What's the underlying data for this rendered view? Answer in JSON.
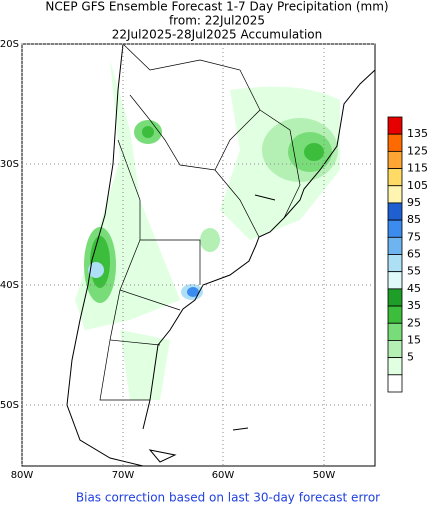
{
  "header": {
    "title": "NCEP GFS Ensemble Forecast 1-7 Day Precipitation (mm)",
    "from": "from: 22Jul2025",
    "period": "22Jul2025-28Jul2025 Accumulation"
  },
  "map": {
    "lat_labels": [
      "20S",
      "30S",
      "40S",
      "50S"
    ],
    "lon_labels": [
      "80W",
      "70W",
      "60W",
      "50W"
    ]
  },
  "colorbar": {
    "colors": [
      "#e60000",
      "#ff6a00",
      "#ffa533",
      "#ffdb66",
      "#fff5b0",
      "#1f5fd0",
      "#3c8cf0",
      "#6eb4f0",
      "#aee0f5",
      "#e0fafa",
      "#1e9e28",
      "#3cbe3c",
      "#78dc78",
      "#b4f0b4",
      "#e1ffe1",
      "#ffffff"
    ],
    "labels": [
      "135",
      "125",
      "115",
      "105",
      "95",
      "85",
      "75",
      "65",
      "55",
      "45",
      "35",
      "25",
      "15",
      "5"
    ]
  },
  "footer": "Bias correction based on last 30-day forecast error"
}
